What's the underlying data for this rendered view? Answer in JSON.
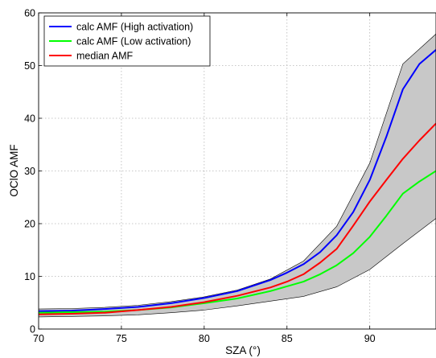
{
  "chart_data": {
    "type": "line",
    "xlabel": "SZA (°)",
    "ylabel": "OClO AMF",
    "xlim": [
      70,
      94
    ],
    "ylim": [
      0,
      60
    ],
    "xticks": [
      70,
      75,
      80,
      85,
      90
    ],
    "yticks": [
      0,
      10,
      20,
      30,
      40,
      50,
      60
    ],
    "grid": true,
    "legend_position": "top-left",
    "band": {
      "x": [
        70,
        72,
        74,
        76,
        78,
        80,
        82,
        84,
        86,
        88,
        90,
        92,
        94
      ],
      "lower": [
        2.3,
        2.4,
        2.5,
        2.7,
        3.1,
        3.6,
        4.4,
        5.3,
        6.2,
        8.0,
        11.3,
        16.2,
        21.0
      ],
      "upper": [
        3.8,
        3.9,
        4.1,
        4.5,
        5.2,
        6.1,
        7.4,
        9.5,
        12.9,
        19.5,
        31.5,
        50.3,
        56.0
      ],
      "color": "#c8c8c8"
    },
    "series": [
      {
        "name": "calc AMF (High activation)",
        "color": "#0000ff",
        "x": [
          70,
          72,
          74,
          76,
          78,
          80,
          82,
          84,
          85,
          86,
          87,
          88,
          89,
          90,
          91,
          92,
          93,
          94
        ],
        "y": [
          3.4,
          3.5,
          3.8,
          4.2,
          4.9,
          5.9,
          7.2,
          9.3,
          10.7,
          12.3,
          14.6,
          17.8,
          22.2,
          28.3,
          36.5,
          45.5,
          50.3,
          53.0
        ]
      },
      {
        "name": "calc AMF (Low activation)",
        "color": "#00ff00",
        "x": [
          70,
          72,
          74,
          76,
          78,
          80,
          82,
          84,
          86,
          87,
          88,
          89,
          90,
          91,
          92,
          93,
          94
        ],
        "y": [
          3.1,
          3.2,
          3.3,
          3.6,
          4.1,
          4.9,
          5.8,
          7.2,
          9.0,
          10.4,
          12.1,
          14.4,
          17.5,
          21.5,
          25.7,
          28.0,
          30.0
        ]
      },
      {
        "name": "median AMF",
        "color": "#ff0000",
        "x": [
          70,
          72,
          74,
          76,
          78,
          80,
          82,
          84,
          85,
          86,
          87,
          88,
          89,
          90,
          91,
          92,
          93,
          94
        ],
        "y": [
          2.8,
          2.9,
          3.1,
          3.6,
          4.2,
          5.1,
          6.3,
          7.9,
          9.0,
          10.4,
          12.6,
          15.2,
          19.6,
          24.2,
          28.3,
          32.3,
          35.8,
          39.0
        ]
      }
    ]
  }
}
